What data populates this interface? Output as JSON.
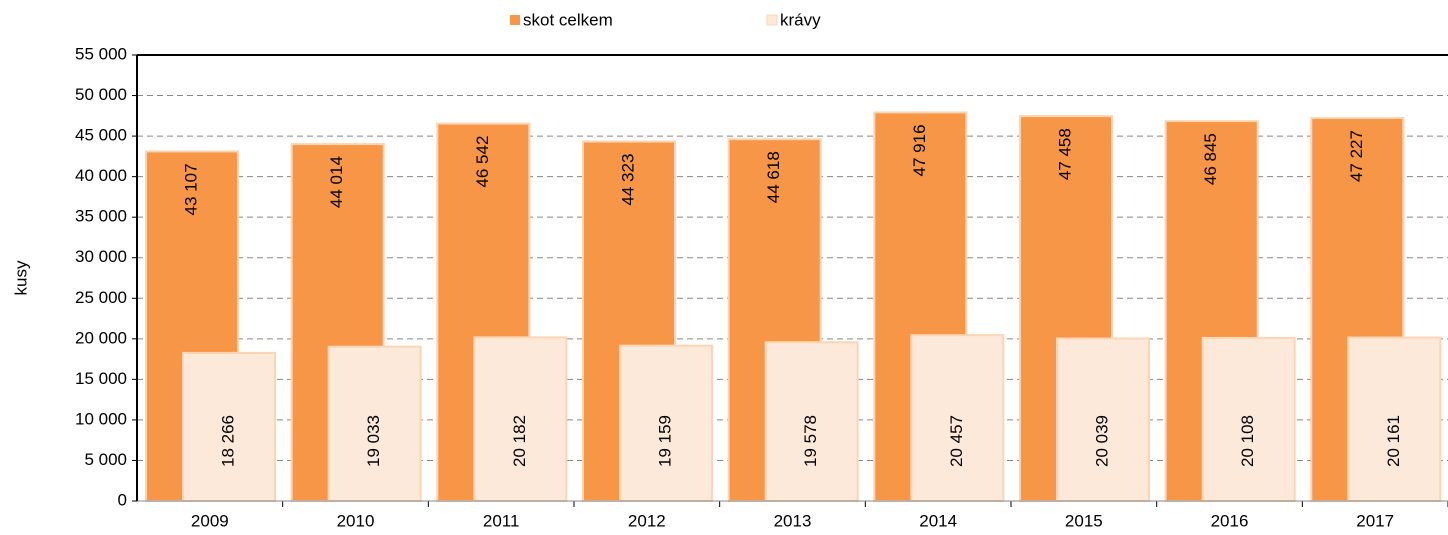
{
  "chart_data": {
    "type": "bar",
    "y_label": "kusy",
    "categories": [
      "2009",
      "2010",
      "2011",
      "2012",
      "2013",
      "2014",
      "2015",
      "2016",
      "2017"
    ],
    "series": [
      {
        "name": "skot celkem",
        "color": "#f79646",
        "values": [
          43107,
          44014,
          46542,
          44323,
          44618,
          47916,
          47458,
          46845,
          47227
        ],
        "value_labels": [
          "43 107",
          "44 014",
          "46 542",
          "44 323",
          "44 618",
          "47 916",
          "47 458",
          "46 845",
          "47 227"
        ]
      },
      {
        "name": "krávy",
        "color": "#fde9d9",
        "values": [
          18266,
          19033,
          20182,
          19159,
          19578,
          20457,
          20039,
          20108,
          20161
        ],
        "value_labels": [
          "18 266",
          "19 033",
          "20 182",
          "19 159",
          "19 578",
          "20 457",
          "20 039",
          "20 108",
          "20 161"
        ]
      }
    ],
    "ylim": [
      0,
      55000
    ],
    "yticks": [
      0,
      {
        "value": 5000,
        "label": "5 000"
      },
      {
        "value": 10000,
        "label": "10 000"
      },
      {
        "value": 15000,
        "label": "15 000"
      },
      {
        "value": 20000,
        "label": "20 000"
      },
      {
        "value": 25000,
        "label": "25 000"
      },
      {
        "value": 30000,
        "label": "30 000"
      },
      {
        "value": 35000,
        "label": "35 000"
      },
      {
        "value": 40000,
        "label": "40 000"
      },
      {
        "value": 45000,
        "label": "45 000"
      },
      {
        "value": 50000,
        "label": "50 000"
      },
      {
        "value": 55000,
        "label": "55 000"
      }
    ],
    "grid": true,
    "legend": "top"
  }
}
